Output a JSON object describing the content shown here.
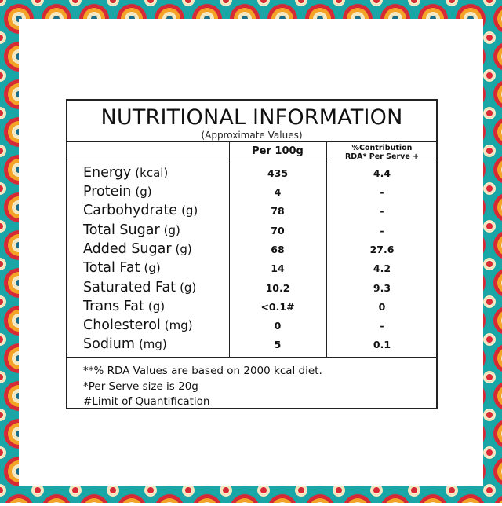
{
  "title": "NUTRITIONAL INFORMATION",
  "subtitle": "(Approximate Values)",
  "columns": {
    "per100g": "Per 100g",
    "rda_line1": "%Contribution",
    "rda_line2": "RDA* Per Serve +"
  },
  "rows": [
    {
      "name": "Energy",
      "unit": "(kcal)",
      "per100g": "435",
      "rda": "4.4"
    },
    {
      "name": "Protein",
      "unit": "(g)",
      "per100g": "4",
      "rda": "-"
    },
    {
      "name": "Carbohydrate",
      "unit": "(g)",
      "per100g": "78",
      "rda": "-"
    },
    {
      "name": "Total Sugar",
      "unit": "(g)",
      "per100g": "70",
      "rda": "-"
    },
    {
      "name": "Added Sugar",
      "unit": "(g)",
      "per100g": "68",
      "rda": "27.6"
    },
    {
      "name": "Total Fat",
      "unit": "(g)",
      "per100g": "14",
      "rda": "4.2"
    },
    {
      "name": "Saturated Fat",
      "unit": "(g)",
      "per100g": "10.2",
      "rda": "9.3"
    },
    {
      "name": "Trans Fat",
      "unit": "(g)",
      "per100g": "<0.1#",
      "rda": "0"
    },
    {
      "name": "Cholesterol",
      "unit": "(mg)",
      "per100g": "0",
      "rda": "-"
    },
    {
      "name": "Sodium",
      "unit": "(mg)",
      "per100g": "5",
      "rda": "0.1"
    }
  ],
  "notes": [
    "**% RDA Values are based on 2000 kcal diet.",
    "*Per Serve size is 20g",
    "#Limit of Quantification"
  ],
  "colors": {
    "frame_teal": "#1aa6a6",
    "pattern_red": "#d62a35",
    "pattern_orange": "#f3a326",
    "pattern_cream": "#f6e7c3"
  },
  "decoration": "mandala-border-pattern"
}
